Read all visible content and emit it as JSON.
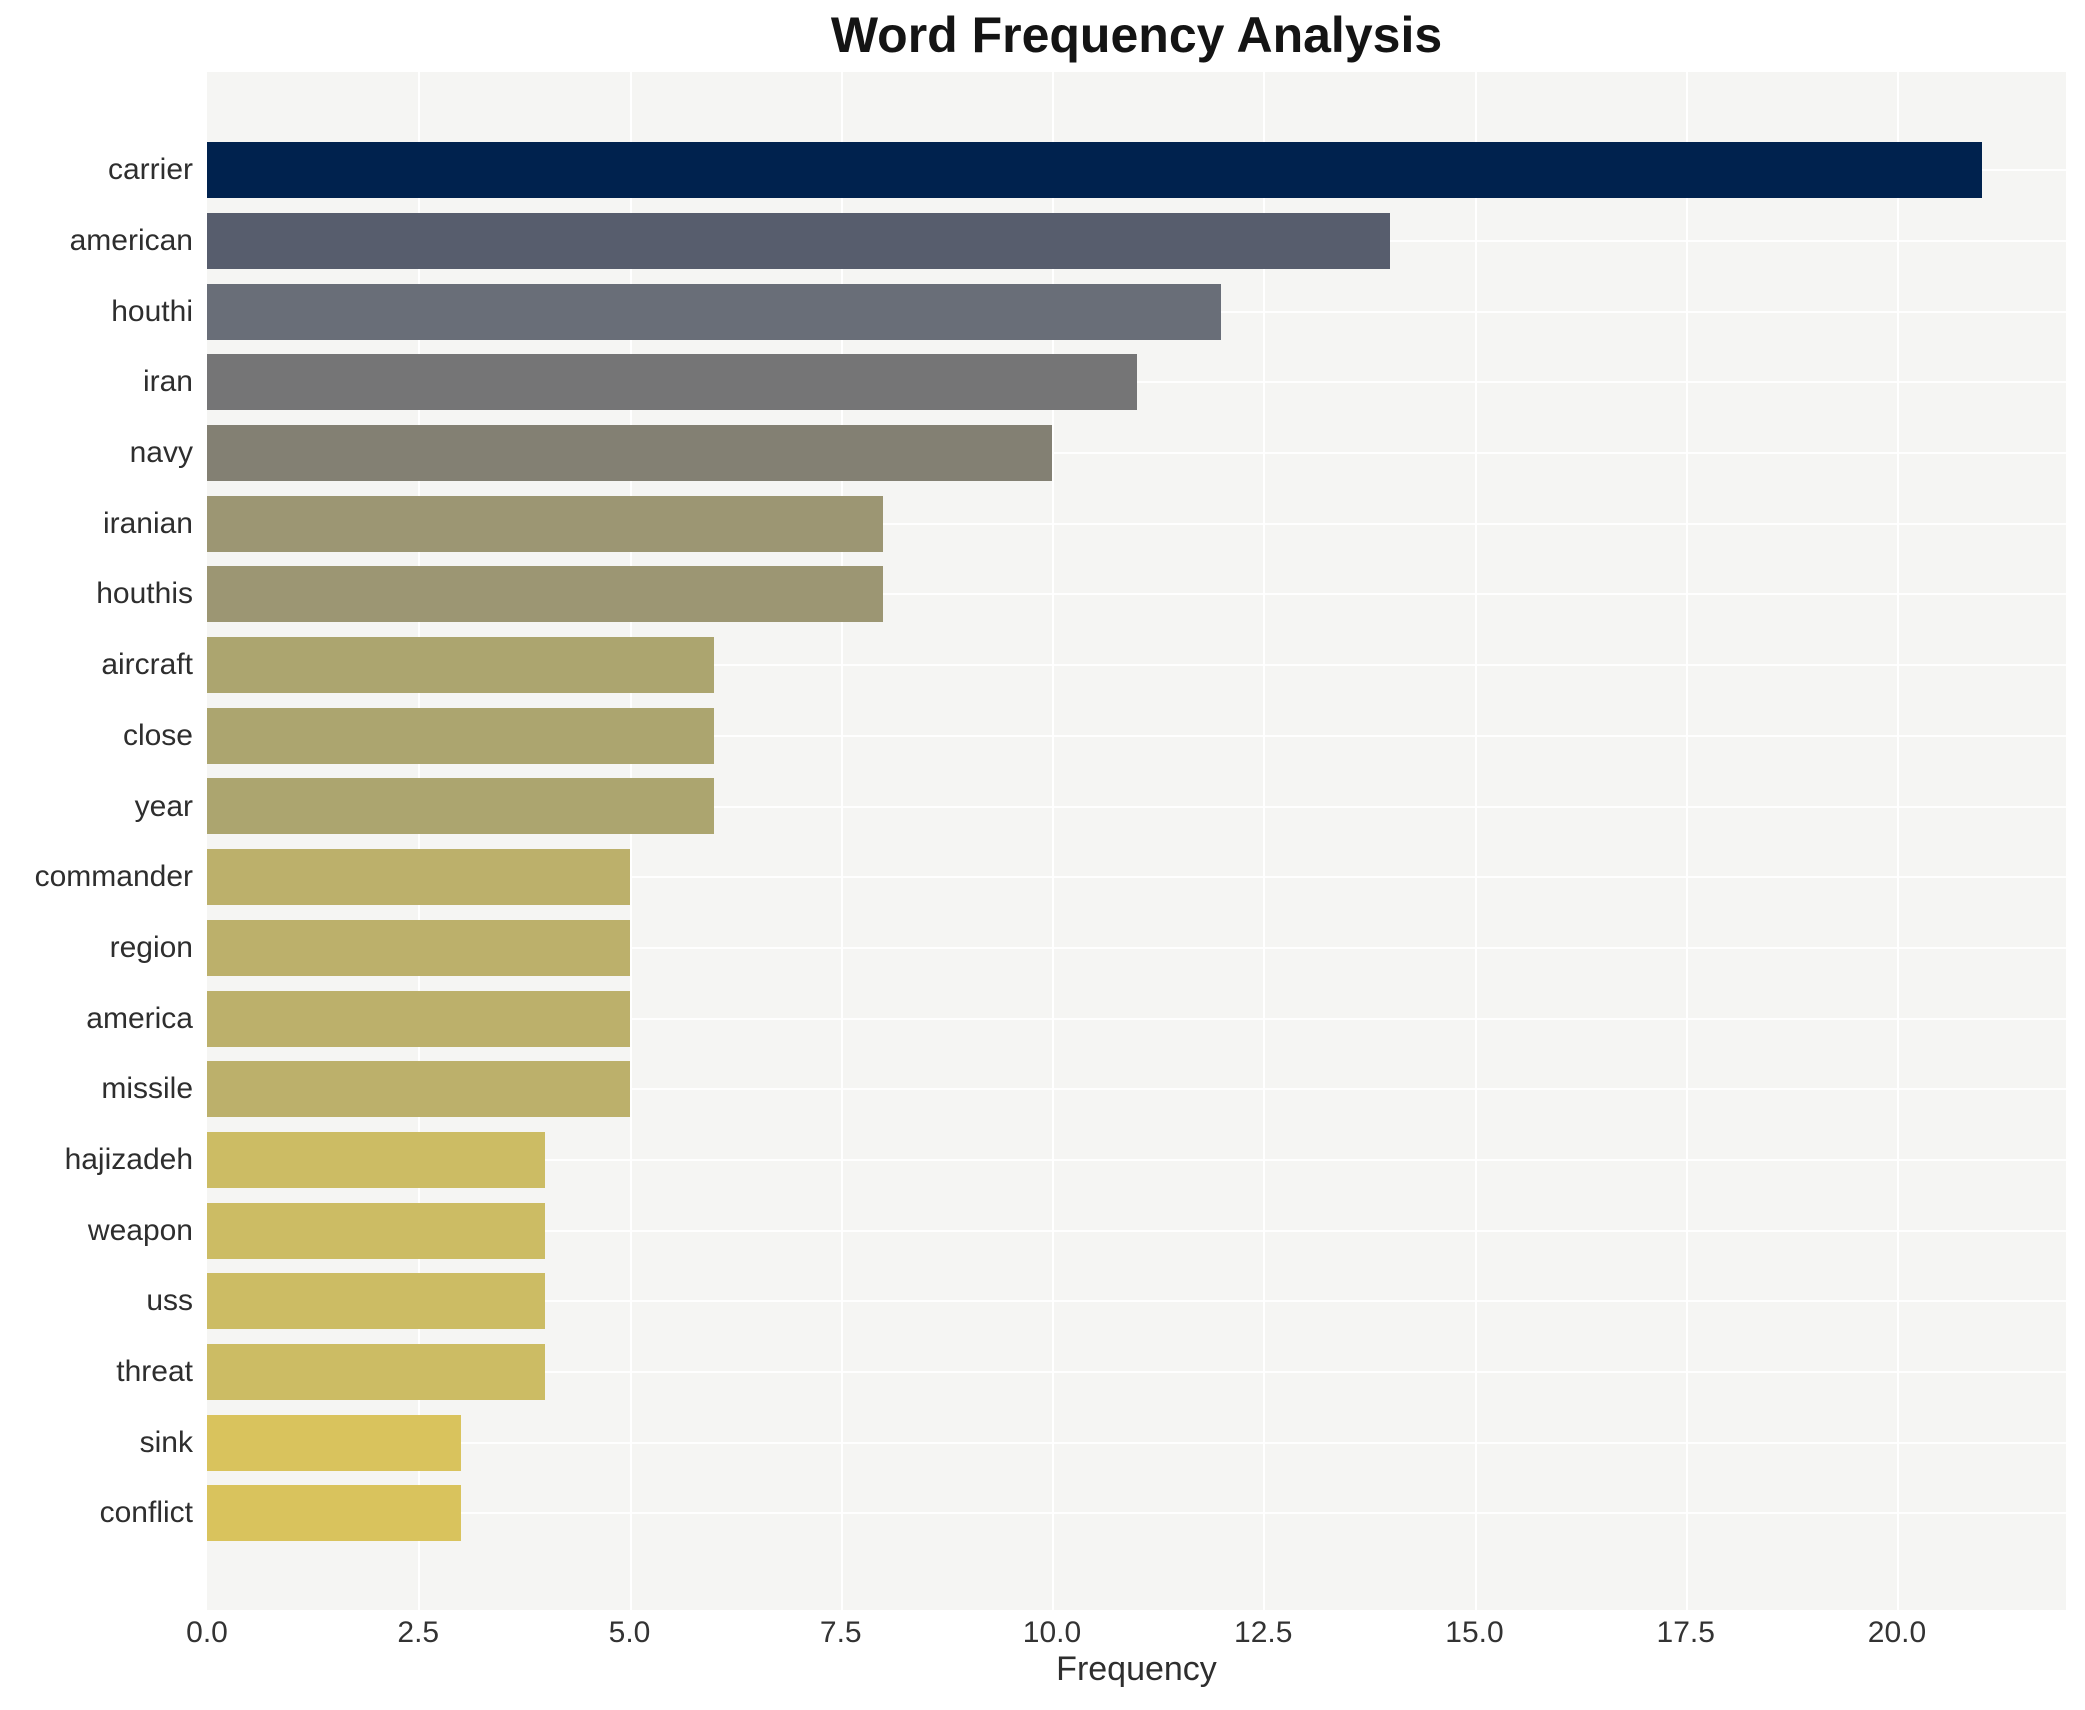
{
  "title": "Word Frequency Analysis",
  "chart_data": {
    "type": "bar",
    "orientation": "horizontal",
    "title": "Word Frequency Analysis",
    "xlabel": "Frequency",
    "ylabel": "",
    "xlim": [
      0,
      22
    ],
    "xtick_values": [
      0,
      2.5,
      5,
      7.5,
      10,
      12.5,
      15,
      17.5,
      20
    ],
    "xtick_labels": [
      "0.0",
      "2.5",
      "5.0",
      "7.5",
      "10.0",
      "12.5",
      "15.0",
      "17.5",
      "20.0"
    ],
    "grid": true,
    "legend_position": "none",
    "categories": [
      "carrier",
      "american",
      "houthi",
      "iran",
      "navy",
      "iranian",
      "houthis",
      "aircraft",
      "close",
      "year",
      "commander",
      "region",
      "america",
      "missile",
      "hajizadeh",
      "weapon",
      "uss",
      "threat",
      "sink",
      "conflict"
    ],
    "values": [
      21,
      14,
      12,
      11,
      10,
      8,
      8,
      6,
      6,
      6,
      5,
      5,
      5,
      5,
      4,
      4,
      4,
      4,
      3,
      3
    ],
    "bar_colors": [
      "#00224e",
      "#575d6d",
      "#696e78",
      "#757576",
      "#838073",
      "#9c9673",
      "#9c9673",
      "#aca56f",
      "#aca56f",
      "#aca56f",
      "#bcb06b",
      "#bcb06b",
      "#bcb06b",
      "#bcb06b",
      "#ccbc64",
      "#ccbc64",
      "#ccbc64",
      "#ccbc64",
      "#d9c35d",
      "#d9c35d"
    ],
    "colors": {
      "plot_background": "#f5f5f3",
      "grid": "#ffffff",
      "title_text": "#141414",
      "label_text": "#2e2e2e"
    }
  }
}
